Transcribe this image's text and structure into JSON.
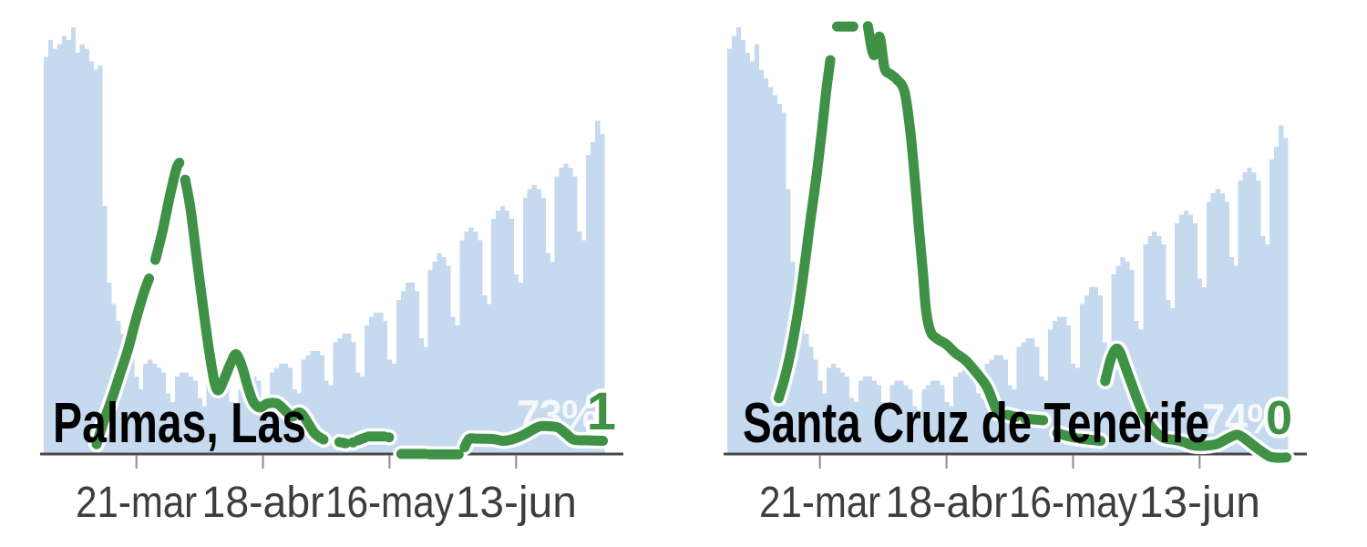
{
  "page": {
    "background": "#ffffff"
  },
  "colors": {
    "bar_fill": "#c5d9ef",
    "line_green": "#3f9245",
    "line_halo": "#ffffff",
    "axis_line": "#47484a",
    "tick_mark": "#8a8a8a",
    "tick_label": "#3d3d3f",
    "title_text": "#000000",
    "pct_label_fill": "#ffffff",
    "pct_label_opacity": 0.82
  },
  "chart_data": [
    {
      "type": "bar+line",
      "title": "Palmas, Las",
      "mobility_label": "73%",
      "end_number": "1",
      "x_tick_labels": [
        "21-mar",
        "18-abr",
        "16-may",
        "13-jun"
      ],
      "x_tick_days": [
        20,
        48,
        76,
        104
      ],
      "x_range_days": [
        0,
        124
      ],
      "y_range_pct": [
        0,
        100
      ],
      "legend": "off",
      "grid": "off",
      "bars_pct": [
        93,
        97,
        95,
        96,
        98,
        97,
        100,
        94,
        96,
        95,
        92,
        90,
        91,
        58,
        40,
        35,
        31,
        28,
        26,
        24,
        18,
        15,
        21,
        22,
        21,
        20,
        19,
        14,
        12,
        18,
        19,
        19,
        18,
        17,
        13,
        11,
        17,
        18,
        17,
        17,
        16,
        12,
        10,
        15,
        17,
        18,
        18,
        17,
        13,
        12,
        19,
        20,
        21,
        21,
        20,
        15,
        14,
        22,
        23,
        24,
        24,
        23,
        17,
        16,
        26,
        27,
        28,
        28,
        26,
        19,
        18,
        30,
        32,
        33,
        33,
        31,
        22,
        21,
        36,
        38,
        40,
        40,
        38,
        27,
        25,
        43,
        45,
        47,
        46,
        44,
        32,
        30,
        50,
        52,
        53,
        52,
        50,
        37,
        35,
        55,
        57,
        58,
        57,
        55,
        42,
        40,
        60,
        62,
        63,
        62,
        60,
        47,
        45,
        65,
        67,
        68,
        67,
        65,
        52,
        50,
        70,
        73,
        78,
        75
      ],
      "line_pct_segments": [
        [
          [
            11.2,
            2.1
          ],
          [
            12.8,
            7.5
          ],
          [
            14.6,
            12.8
          ],
          [
            16.4,
            18.6
          ],
          [
            18.2,
            24.6
          ],
          [
            19.8,
            31
          ],
          [
            21.6,
            37.5
          ],
          [
            22.8,
            41
          ]
        ],
        [
          [
            24.2,
            45.4
          ],
          [
            25.8,
            52.2
          ],
          [
            27.4,
            60.4
          ],
          [
            28.8,
            66.6
          ],
          [
            29.5,
            68.2
          ]
        ],
        [
          [
            30.8,
            64.2
          ],
          [
            32,
            57.2
          ],
          [
            33.4,
            45.4
          ],
          [
            34.7,
            34.7
          ],
          [
            36.1,
            24
          ],
          [
            37.3,
            16.5
          ],
          [
            38.2,
            14.8
          ],
          [
            39.5,
            17.6
          ],
          [
            40.9,
            21.2
          ],
          [
            42.1,
            23.2
          ],
          [
            43.5,
            19.9
          ],
          [
            44.7,
            15.4
          ],
          [
            45.9,
            12
          ],
          [
            47.3,
            10.7
          ],
          [
            48.9,
            11.6
          ],
          [
            51,
            11.7
          ],
          [
            52.6,
            10.3
          ],
          [
            54.4,
            8.6
          ],
          [
            56.4,
            9.4
          ],
          [
            59.4,
            4.7
          ],
          [
            61.4,
            3.2
          ]
        ],
        [
          [
            64.9,
            2.6
          ],
          [
            66.3,
            2.3
          ]
        ],
        [
          [
            67.9,
            2.5
          ]
        ],
        [
          [
            69,
            3
          ],
          [
            70.5,
            3.6
          ]
        ],
        [
          [
            71.3,
            3.9
          ],
          [
            74.8,
            3.9
          ]
        ],
        [
          [
            75.9,
            3.7
          ]
        ],
        [
          [
            78.6,
            -0.2
          ],
          [
            84,
            -0.2
          ]
        ],
        [
          [
            84.8,
            -0.3
          ],
          [
            91.3,
            -0.3
          ]
        ],
        [
          [
            92.6,
            1.4
          ],
          [
            93.6,
            3.3
          ],
          [
            95,
            3.4
          ],
          [
            99,
            3.3
          ],
          [
            101,
            2.9
          ],
          [
            103,
            3.2
          ],
          [
            105.5,
            4.2
          ],
          [
            107.5,
            5.4
          ],
          [
            109.3,
            6.3
          ],
          [
            111.5,
            6.3
          ],
          [
            113.3,
            6
          ],
          [
            115,
            4.6
          ],
          [
            116.7,
            3.2
          ],
          [
            119.5,
            3
          ],
          [
            123.2,
            2.9
          ]
        ]
      ]
    },
    {
      "type": "bar+line",
      "title": "Santa Cruz de Tenerife",
      "mobility_label": "74%",
      "end_number": "0",
      "x_tick_labels": [
        "21-mar",
        "18-abr",
        "16-may",
        "13-jun"
      ],
      "x_tick_days": [
        20,
        48,
        76,
        104
      ],
      "x_range_days": [
        0,
        124
      ],
      "y_range_pct": [
        0,
        100
      ],
      "legend": "off",
      "grid": "off",
      "bars_pct": [
        95,
        98,
        100,
        97,
        94,
        92,
        96,
        90,
        88,
        86,
        84,
        82,
        80,
        62,
        45,
        38,
        32,
        28,
        25,
        22,
        17,
        14,
        20,
        21,
        20,
        19,
        18,
        13,
        12,
        17,
        18,
        18,
        17,
        16,
        12,
        11,
        16,
        17,
        17,
        16,
        15,
        11,
        10,
        15,
        16,
        17,
        17,
        16,
        12,
        11,
        18,
        19,
        20,
        20,
        19,
        14,
        13,
        21,
        22,
        23,
        23,
        22,
        16,
        15,
        25,
        26,
        27,
        27,
        25,
        18,
        17,
        29,
        31,
        32,
        32,
        30,
        21,
        20,
        35,
        37,
        39,
        39,
        37,
        26,
        24,
        42,
        44,
        46,
        45,
        43,
        31,
        29,
        49,
        51,
        52,
        51,
        49,
        36,
        34,
        54,
        56,
        57,
        56,
        54,
        41,
        39,
        59,
        61,
        62,
        61,
        59,
        46,
        44,
        64,
        66,
        67,
        66,
        64,
        51,
        49,
        69,
        72,
        77,
        74
      ],
      "line_pct_segments": [
        [
          [
            10.9,
            12.9
          ],
          [
            12.2,
            17.6
          ],
          [
            13.6,
            24
          ],
          [
            15.2,
            33.6
          ],
          [
            16.6,
            44
          ],
          [
            17.8,
            54
          ],
          [
            19.2,
            64.7
          ],
          [
            20.4,
            75.4
          ],
          [
            21.4,
            85
          ],
          [
            22.3,
            92.3
          ]
        ],
        [
          [
            23.8,
            100.2
          ],
          [
            27.4,
            100.2
          ]
        ],
        [
          [
            30.6,
            100.3
          ],
          [
            31.9,
            93.5
          ],
          [
            33.2,
            97.8
          ],
          [
            34.3,
            90.5
          ],
          [
            35.6,
            89
          ],
          [
            37,
            87.8
          ],
          [
            38.7,
            85
          ],
          [
            39.9,
            76.4
          ],
          [
            40.9,
            65.7
          ],
          [
            41.9,
            52.9
          ],
          [
            42.8,
            42.2
          ],
          [
            43.5,
            33.5
          ],
          [
            44.5,
            28.5
          ],
          [
            46,
            26.8
          ],
          [
            48,
            25.5
          ],
          [
            50,
            23.5
          ],
          [
            52,
            22
          ],
          [
            54,
            19.7
          ],
          [
            56.8,
            15.8
          ],
          [
            58.4,
            11.8
          ],
          [
            59.3,
            9.4
          ]
        ],
        [
          [
            61.5,
            9
          ],
          [
            63.4,
            8.5
          ]
        ],
        [
          [
            65.4,
            8.1
          ],
          [
            67.4,
            7.9
          ],
          [
            69.4,
            7.7
          ]
        ],
        [
          [
            72.5,
            4.7
          ],
          [
            74.5,
            4.1
          ],
          [
            76.5,
            3.6
          ]
        ],
        [
          [
            77.5,
            3.4
          ],
          [
            80,
            3.1
          ],
          [
            82.1,
            2.9
          ]
        ],
        [
          [
            83.1,
            16.9
          ],
          [
            84.5,
            22.5
          ],
          [
            86,
            24.4
          ],
          [
            88,
            19
          ],
          [
            91.2,
            10
          ],
          [
            93.6,
            5.8
          ],
          [
            96,
            3.6
          ],
          [
            98.5,
            3.1
          ],
          [
            100.5,
            2.6
          ],
          [
            102.2,
            1.9
          ],
          [
            104,
            1.7
          ],
          [
            106,
            1.8
          ],
          [
            108,
            2.2
          ],
          [
            110.3,
            3.5
          ],
          [
            112.3,
            4.3
          ],
          [
            114,
            3.4
          ],
          [
            115.8,
            1.9
          ],
          [
            117.7,
            0.4
          ],
          [
            119.5,
            -0.8
          ],
          [
            121.5,
            -1.1
          ],
          [
            123.2,
            -1
          ]
        ]
      ]
    }
  ]
}
